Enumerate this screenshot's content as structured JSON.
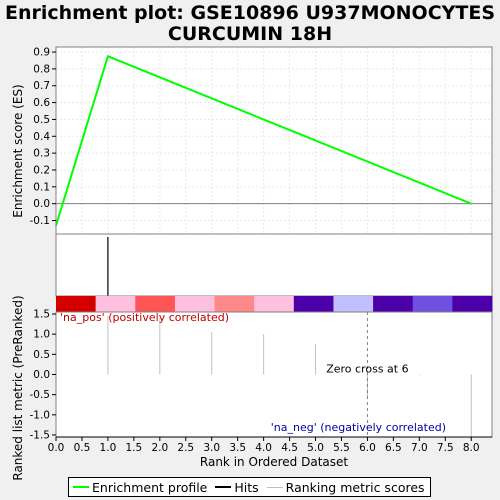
{
  "title_lines": [
    "Enrichment plot: GSE10896 U937MONOCYTES",
    "CURCUMIN 18H"
  ],
  "chart_data": {
    "type": "line",
    "xlabel": "Rank in Ordered Dataset",
    "xlim": [
      0,
      8.4
    ],
    "x_ticks": [
      "0.0",
      "0.5",
      "1.0",
      "1.5",
      "2.0",
      "2.5",
      "3.0",
      "3.5",
      "4.0",
      "4.5",
      "5.0",
      "5.5",
      "6.0",
      "6.5",
      "7.0",
      "7.5",
      "8.0"
    ],
    "es_panel": {
      "ylabel": "Enrichment score (ES)",
      "ylim": [
        -0.18,
        0.93
      ],
      "y_ticks": [
        "-0.1",
        "0.0",
        "0.1",
        "0.2",
        "0.3",
        "0.4",
        "0.5",
        "0.6",
        "0.7",
        "0.8",
        "0.9"
      ],
      "series": [
        {
          "color": "#00ff00",
          "x": [
            0,
            1,
            8
          ],
          "y": [
            -0.13,
            0.875,
            0.0
          ]
        }
      ],
      "grid": true
    },
    "hits": {
      "x": [
        1
      ]
    },
    "heatmap_colors": [
      "#d40000",
      "#ffc0e0",
      "#ff5555",
      "#ffc0e0",
      "#ff8888",
      "#ffc0e0",
      "#4b00aa",
      "#c0c0ff",
      "#4b00aa",
      "#7050e0",
      "#4b00aa"
    ],
    "metric_panel": {
      "ylabel": "Ranked list metric (PreRanked)",
      "ylim": [
        -1.55,
        1.55
      ],
      "y_ticks": [
        "-1.5",
        "-1.0",
        "-0.5",
        "0.0",
        "0.5",
        "1.0",
        "1.5"
      ],
      "bars": {
        "x": [
          0,
          1,
          2,
          3,
          4,
          5,
          6,
          7,
          8
        ],
        "y": [
          1.55,
          1.45,
          1.4,
          1.05,
          1.0,
          0.75,
          -0.55,
          -0.02,
          -1.6
        ]
      },
      "zero_cross": 6,
      "zero_cross_label": "Zero cross at 6",
      "pos_label": "'na_pos' (positively correlated)",
      "neg_label": "'na_neg' (negatively correlated)"
    },
    "legend": [
      {
        "label": "Enrichment profile",
        "color": "#00ff00"
      },
      {
        "label": "Hits",
        "color": "#000000"
      },
      {
        "label": "Ranking metric scores",
        "color": "#c0c0c0"
      }
    ]
  }
}
